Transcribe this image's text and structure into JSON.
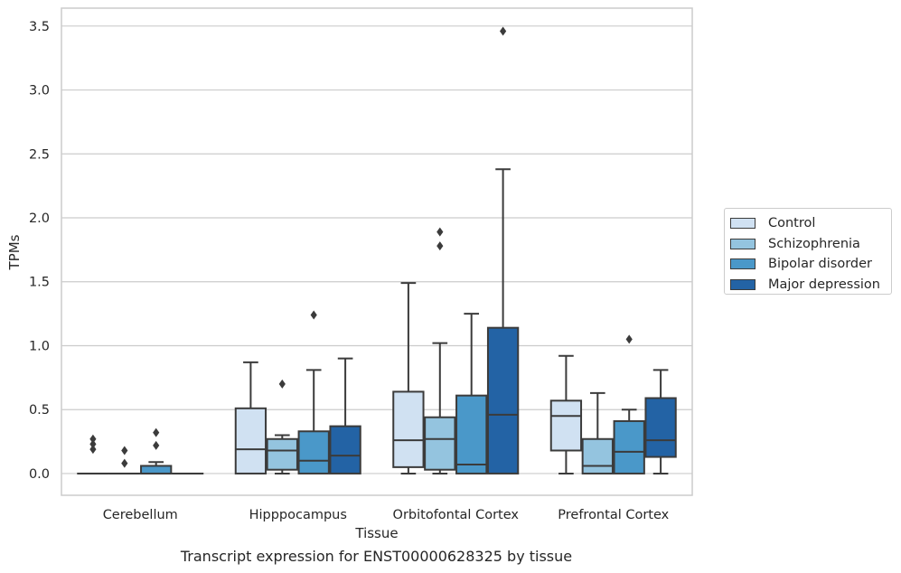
{
  "caption": "Transcript expression for ENST00000628325 by tissue",
  "colors": {
    "grid": "#cccccc",
    "frame": "#cccccc",
    "line": "#3b3b3b",
    "series": [
      "#d0e1f2",
      "#94c4df",
      "#4a98c9",
      "#2363a5"
    ]
  },
  "chart_data": {
    "type": "box",
    "xlabel": "Tissue",
    "ylabel": "TPMs",
    "ylim": [
      -0.17,
      3.64
    ],
    "yticks": [
      0.0,
      0.5,
      1.0,
      1.5,
      2.0,
      2.5,
      3.0,
      3.5
    ],
    "ytick_labels": [
      "0.0",
      "0.5",
      "1.0",
      "1.5",
      "2.0",
      "2.5",
      "3.0",
      "3.5"
    ],
    "grid": true,
    "legend_position": "right, outside plot",
    "categories": [
      "Cerebellum",
      "Hipppocampus",
      "Orbitofontal Cortex",
      "Prefrontal Cortex"
    ],
    "series": [
      {
        "name": "Control",
        "boxes": [
          {
            "q1": 0.0,
            "median": 0.0,
            "q3": 0.0,
            "whisker_low": 0.0,
            "whisker_high": 0.0,
            "outliers": [
              0.19,
              0.23,
              0.27
            ]
          },
          {
            "q1": 0.0,
            "median": 0.19,
            "q3": 0.51,
            "whisker_low": 0.0,
            "whisker_high": 0.87,
            "outliers": []
          },
          {
            "q1": 0.05,
            "median": 0.26,
            "q3": 0.64,
            "whisker_low": 0.0,
            "whisker_high": 1.49,
            "outliers": []
          },
          {
            "q1": 0.18,
            "median": 0.45,
            "q3": 0.57,
            "whisker_low": 0.0,
            "whisker_high": 0.92,
            "outliers": []
          }
        ]
      },
      {
        "name": "Schizophrenia",
        "boxes": [
          {
            "q1": 0.0,
            "median": 0.0,
            "q3": 0.0,
            "whisker_low": 0.0,
            "whisker_high": 0.0,
            "outliers": [
              0.08,
              0.18
            ]
          },
          {
            "q1": 0.03,
            "median": 0.18,
            "q3": 0.27,
            "whisker_low": 0.0,
            "whisker_high": 0.3,
            "outliers": [
              0.7
            ]
          },
          {
            "q1": 0.03,
            "median": 0.27,
            "q3": 0.44,
            "whisker_low": 0.0,
            "whisker_high": 1.02,
            "outliers": [
              1.78,
              1.89
            ]
          },
          {
            "q1": 0.0,
            "median": 0.06,
            "q3": 0.27,
            "whisker_low": 0.0,
            "whisker_high": 0.63,
            "outliers": []
          }
        ]
      },
      {
        "name": "Bipolar disorder",
        "boxes": [
          {
            "q1": 0.0,
            "median": 0.0,
            "q3": 0.06,
            "whisker_low": 0.0,
            "whisker_high": 0.09,
            "outliers": [
              0.22,
              0.32
            ]
          },
          {
            "q1": 0.0,
            "median": 0.1,
            "q3": 0.33,
            "whisker_low": 0.0,
            "whisker_high": 0.81,
            "outliers": [
              1.24
            ]
          },
          {
            "q1": 0.0,
            "median": 0.07,
            "q3": 0.61,
            "whisker_low": 0.0,
            "whisker_high": 1.25,
            "outliers": []
          },
          {
            "q1": 0.0,
            "median": 0.17,
            "q3": 0.41,
            "whisker_low": 0.0,
            "whisker_high": 0.5,
            "outliers": [
              1.05
            ]
          }
        ]
      },
      {
        "name": "Major depression",
        "boxes": [
          {
            "q1": 0.0,
            "median": 0.0,
            "q3": 0.0,
            "whisker_low": 0.0,
            "whisker_high": 0.0,
            "outliers": []
          },
          {
            "q1": 0.0,
            "median": 0.14,
            "q3": 0.37,
            "whisker_low": 0.0,
            "whisker_high": 0.9,
            "outliers": []
          },
          {
            "q1": 0.0,
            "median": 0.46,
            "q3": 1.14,
            "whisker_low": 0.0,
            "whisker_high": 2.38,
            "outliers": [
              3.46
            ]
          },
          {
            "q1": 0.13,
            "median": 0.26,
            "q3": 0.59,
            "whisker_low": 0.0,
            "whisker_high": 0.81,
            "outliers": []
          }
        ]
      }
    ]
  }
}
